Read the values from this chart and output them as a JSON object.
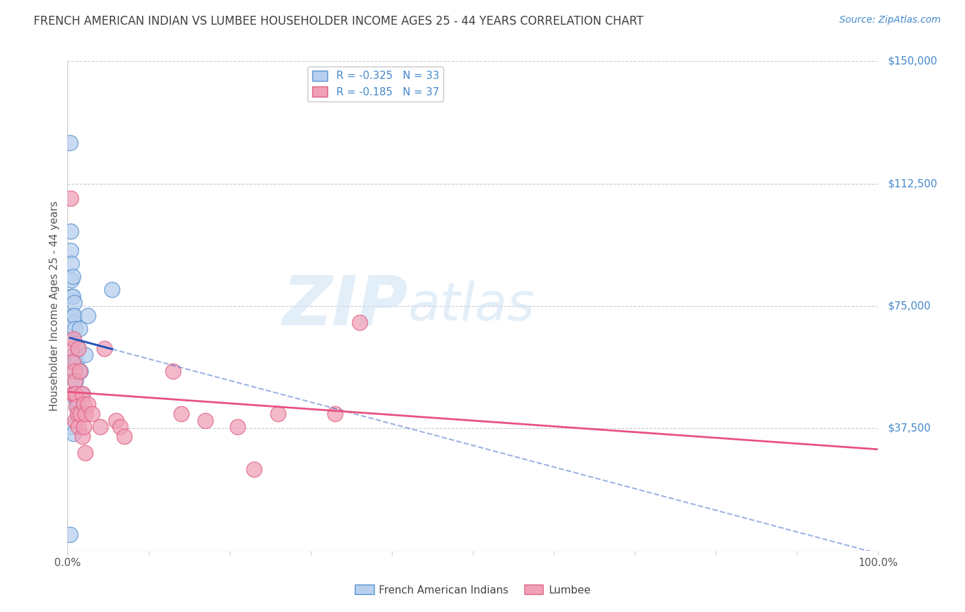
{
  "title": "FRENCH AMERICAN INDIAN VS LUMBEE HOUSEHOLDER INCOME AGES 25 - 44 YEARS CORRELATION CHART",
  "source": "Source: ZipAtlas.com",
  "ylabel": "Householder Income Ages 25 - 44 years",
  "xlim": [
    0,
    1.0
  ],
  "ylim": [
    0,
    150000
  ],
  "ytick_labels": [
    "$150,000",
    "$112,500",
    "$75,000",
    "$37,500"
  ],
  "ytick_values": [
    150000,
    112500,
    75000,
    37500
  ],
  "blue_R": "-0.325",
  "blue_N": "33",
  "pink_R": "-0.185",
  "pink_N": "37",
  "legend_label_blue": "French American Indians",
  "legend_label_pink": "Lumbee",
  "blue_fill": "#b8d0ee",
  "blue_edge": "#5590d0",
  "pink_fill": "#f0a0b8",
  "pink_edge": "#e06080",
  "blue_line": "#2255bb",
  "pink_line": "#e85080",
  "watermark_zip": "ZIP",
  "watermark_atlas": "atlas",
  "grid_color": "#c8c8d8",
  "axis_color": "#cccccc",
  "blue_label_color": "#4488cc",
  "title_color": "#404040",
  "blue_points_x": [
    0.003,
    0.004,
    0.004,
    0.005,
    0.005,
    0.005,
    0.006,
    0.006,
    0.006,
    0.007,
    0.007,
    0.008,
    0.008,
    0.008,
    0.009,
    0.009,
    0.009,
    0.01,
    0.01,
    0.011,
    0.011,
    0.012,
    0.013,
    0.013,
    0.015,
    0.016,
    0.018,
    0.022,
    0.025,
    0.003,
    0.005,
    0.007,
    0.055
  ],
  "blue_points_y": [
    125000,
    98000,
    92000,
    88000,
    83000,
    78000,
    84000,
    78000,
    72000,
    70000,
    65000,
    60000,
    76000,
    72000,
    68000,
    58000,
    55000,
    52000,
    48000,
    58000,
    46000,
    44000,
    62000,
    42000,
    68000,
    55000,
    48000,
    60000,
    72000,
    5000,
    38000,
    36000,
    80000
  ],
  "pink_points_x": [
    0.004,
    0.005,
    0.006,
    0.006,
    0.007,
    0.007,
    0.008,
    0.009,
    0.009,
    0.01,
    0.011,
    0.012,
    0.013,
    0.013,
    0.015,
    0.016,
    0.018,
    0.018,
    0.02,
    0.02,
    0.022,
    0.022,
    0.025,
    0.03,
    0.04,
    0.045,
    0.06,
    0.065,
    0.07,
    0.13,
    0.14,
    0.17,
    0.21,
    0.23,
    0.26,
    0.33,
    0.36
  ],
  "pink_points_y": [
    108000,
    62000,
    58000,
    48000,
    65000,
    48000,
    55000,
    52000,
    40000,
    48000,
    44000,
    42000,
    62000,
    38000,
    55000,
    42000,
    48000,
    35000,
    45000,
    38000,
    42000,
    30000,
    45000,
    42000,
    38000,
    62000,
    40000,
    38000,
    35000,
    55000,
    42000,
    40000,
    38000,
    25000,
    42000,
    42000,
    70000
  ],
  "background_color": "#ffffff"
}
